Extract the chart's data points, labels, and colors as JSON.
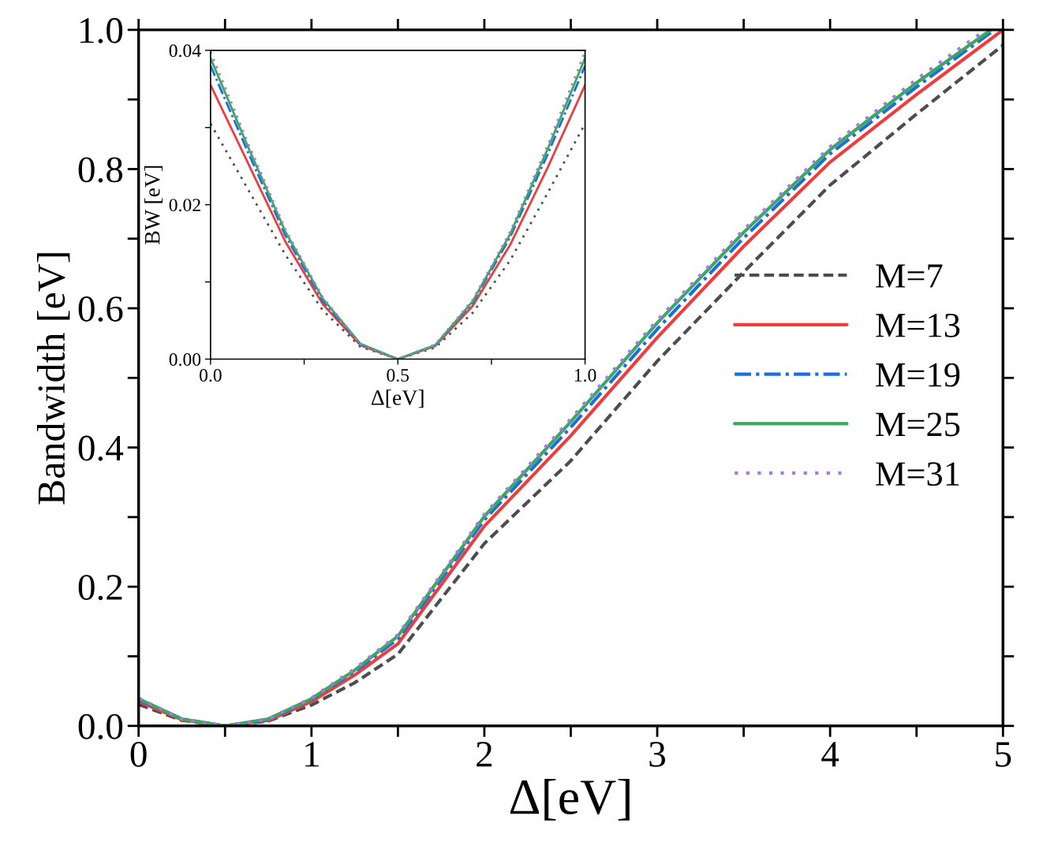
{
  "chart_data": [
    {
      "type": "line",
      "xlabel": "Δ[eV]",
      "ylabel": "Bandwidth [eV]",
      "xlim": [
        0,
        5
      ],
      "ylim": [
        0,
        1.0
      ],
      "xticks": [
        0,
        {
          "value": 0.5,
          "label": null
        },
        1,
        {
          "value": 1.5,
          "label": null
        },
        2,
        {
          "value": 2.5,
          "label": null
        },
        3,
        {
          "value": 3.5,
          "label": null
        },
        4,
        {
          "value": 4.5,
          "label": null
        },
        5
      ],
      "yticks": [
        {
          "value": 0,
          "label": "0.0"
        },
        {
          "value": 0.1,
          "label": null
        },
        {
          "value": 0.2,
          "label": "0.2"
        },
        {
          "value": 0.3,
          "label": null
        },
        {
          "value": 0.4,
          "label": "0.4"
        },
        {
          "value": 0.5,
          "label": null
        },
        {
          "value": 0.6,
          "label": "0.6"
        },
        {
          "value": 0.7,
          "label": null
        },
        {
          "value": 0.8,
          "label": "0.8"
        },
        {
          "value": 0.9,
          "label": null
        },
        {
          "value": 1.0,
          "label": "1.0"
        }
      ],
      "grid": false,
      "legend": "right",
      "marker": "none",
      "series": [
        {
          "name": "M=7",
          "color": "#4d4d4d",
          "line_style": "dashed",
          "x": [
            0,
            0.25,
            0.5,
            0.75,
            1,
            1.25,
            1.5,
            2,
            2.5,
            3,
            3.5,
            4,
            4.5,
            5
          ],
          "values": [
            0.031,
            0.008,
            0,
            0.007,
            0.03,
            0.062,
            0.103,
            0.262,
            0.381,
            0.524,
            0.652,
            0.777,
            0.879,
            0.978
          ]
        },
        {
          "name": "M=13",
          "color": "#f03c3c",
          "line_style": "solid",
          "x": [
            0,
            0.25,
            0.5,
            0.75,
            1,
            1.25,
            1.5,
            2,
            2.5,
            3,
            3.5,
            4,
            4.5,
            5
          ],
          "values": [
            0.035,
            0.009,
            0,
            0.008,
            0.035,
            0.073,
            0.118,
            0.287,
            0.417,
            0.558,
            0.689,
            0.81,
            0.907,
            1.0
          ]
        },
        {
          "name": "M=19",
          "color": "#1a6fe0",
          "line_style": "dashdot",
          "x": [
            0,
            0.25,
            0.5,
            0.75,
            1,
            1.25,
            1.5,
            2,
            2.5,
            3,
            3.5,
            4,
            4.5,
            4.95
          ],
          "values": [
            0.038,
            0.01,
            0,
            0.009,
            0.038,
            0.078,
            0.125,
            0.296,
            0.429,
            0.57,
            0.701,
            0.822,
            0.918,
            1.0
          ]
        },
        {
          "name": "M=25",
          "color": "#3aa860",
          "line_style": "solid",
          "x": [
            0,
            0.25,
            0.5,
            0.75,
            1,
            1.25,
            1.5,
            2,
            2.5,
            3,
            3.5,
            4,
            4.5,
            4.93
          ],
          "values": [
            0.039,
            0.01,
            0,
            0.01,
            0.039,
            0.08,
            0.129,
            0.301,
            0.437,
            0.579,
            0.709,
            0.828,
            0.924,
            1.0
          ]
        },
        {
          "name": "M=31",
          "color": "#a87ae0",
          "line_style": "dotted",
          "x": [
            0,
            0.25,
            0.5,
            0.75,
            1,
            1.25,
            1.5,
            2,
            2.5,
            3,
            3.5,
            4,
            4.5,
            4.9
          ],
          "values": [
            0.04,
            0.01,
            0,
            0.01,
            0.04,
            0.082,
            0.131,
            0.304,
            0.441,
            0.583,
            0.713,
            0.832,
            0.929,
            1.0
          ]
        }
      ]
    },
    {
      "type": "line",
      "xlabel": "Δ[eV]",
      "ylabel": "BW [eV]",
      "xlim": [
        0,
        1.0
      ],
      "ylim": [
        0,
        0.04
      ],
      "xticks": [
        {
          "value": 0,
          "label": "0.0"
        },
        {
          "value": 0.25,
          "label": null
        },
        {
          "value": 0.5,
          "label": "0.5"
        },
        {
          "value": 0.75,
          "label": null
        },
        {
          "value": 1.0,
          "label": "1.0"
        }
      ],
      "yticks": [
        {
          "value": 0,
          "label": "0.00"
        },
        {
          "value": 0.01,
          "label": null
        },
        {
          "value": 0.02,
          "label": "0.02"
        },
        {
          "value": 0.03,
          "label": null
        },
        {
          "value": 0.04,
          "label": "0.04"
        }
      ],
      "grid": false,
      "marker": "none",
      "x": [
        0,
        0.1,
        0.2,
        0.3,
        0.4,
        0.5,
        0.6,
        0.7,
        0.8,
        0.9,
        1.0
      ],
      "series": [
        {
          "color": "#4d4d4d",
          "line_style": "dotted",
          "values": [
            0.0305,
            0.022,
            0.0135,
            0.0063,
            0.0016,
            0,
            0.0015,
            0.006,
            0.0128,
            0.0215,
            0.0305
          ]
        },
        {
          "color": "#f03c3c",
          "line_style": "solid",
          "values": [
            0.0355,
            0.0254,
            0.0152,
            0.0071,
            0.0018,
            0,
            0.0017,
            0.0069,
            0.0148,
            0.0248,
            0.0355
          ]
        },
        {
          "color": "#1a6fe0",
          "line_style": "dashdot",
          "values": [
            0.038,
            0.0268,
            0.016,
            0.0075,
            0.0019,
            0,
            0.0018,
            0.0073,
            0.0158,
            0.0265,
            0.038
          ]
        },
        {
          "color": "#3aa860",
          "line_style": "solid",
          "values": [
            0.039,
            0.0275,
            0.0165,
            0.0078,
            0.002,
            0,
            0.0018,
            0.0075,
            0.0162,
            0.0272,
            0.039
          ]
        },
        {
          "color": "#a87ae0",
          "line_style": "dotted",
          "values": [
            0.0398,
            0.028,
            0.0168,
            0.008,
            0.002,
            0,
            0.0019,
            0.0077,
            0.0165,
            0.0277,
            0.0398
          ]
        }
      ]
    }
  ]
}
